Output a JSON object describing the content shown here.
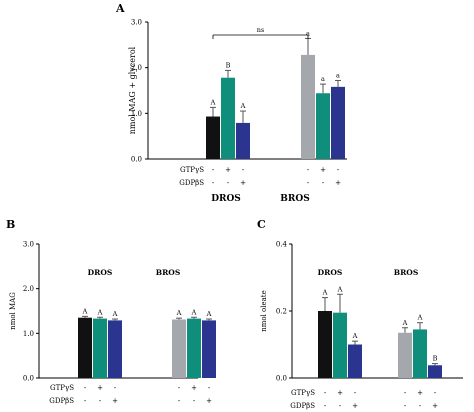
{
  "chart_data": [
    {
      "panel": "A",
      "type": "bar",
      "ylabel": "nmol MAG + glycerol",
      "ylim": [
        0,
        3.0
      ],
      "yticks": [
        "0.0",
        "1.0",
        "2.0",
        "3.0"
      ],
      "groups": [
        "DROS",
        "BROS"
      ],
      "treatments": {
        "GTPgS": [
          "-",
          "+",
          "-"
        ],
        "GDPbS": [
          "-",
          "-",
          "+"
        ]
      },
      "treatment_labels": [
        "GTPγS",
        "GDPβS"
      ],
      "series": [
        {
          "values": [
            0.93,
            1.78,
            0.79
          ],
          "errors": [
            0.2,
            0.16,
            0.26
          ],
          "letters": [
            "A",
            "B",
            "A"
          ]
        },
        {
          "values": [
            2.28,
            1.44,
            1.58
          ],
          "errors": [
            0.36,
            0.2,
            0.14
          ],
          "letters": [
            "a",
            "a",
            "a"
          ]
        }
      ],
      "colors": [
        "#111111",
        "#0f8e7c",
        "#2b3590",
        "#a4a8ad",
        "#0f8e7c",
        "#2b3590"
      ],
      "annotation": "ns"
    },
    {
      "panel": "B",
      "type": "bar",
      "ylabel": "nmol MAG",
      "ylim": [
        0,
        3.0
      ],
      "yticks": [
        "0.0",
        "1.0",
        "2.0",
        "3.0"
      ],
      "groups": [
        "DROS",
        "BROS"
      ],
      "treatments": {
        "GTPgS": [
          "-",
          "+",
          "-"
        ],
        "GDPbS": [
          "-",
          "-",
          "+"
        ]
      },
      "treatment_labels": [
        "GTPγS",
        "GDPβS"
      ],
      "series": [
        {
          "values": [
            1.35,
            1.33,
            1.29
          ],
          "errors": [
            0.03,
            0.03,
            0.03
          ],
          "letters": [
            "A",
            "A",
            "A"
          ]
        },
        {
          "values": [
            1.31,
            1.33,
            1.29
          ],
          "errors": [
            0.03,
            0.03,
            0.03
          ],
          "letters": [
            "A",
            "A",
            "A"
          ]
        }
      ],
      "colors": [
        "#111111",
        "#0f8e7c",
        "#2b3590",
        "#a4a8ad",
        "#0f8e7c",
        "#2b3590"
      ]
    },
    {
      "panel": "C",
      "type": "bar",
      "ylabel": "nmol oleate",
      "ylim": [
        0,
        0.4
      ],
      "yticks": [
        "0.0",
        "0.2",
        "0.4"
      ],
      "groups": [
        "DROS",
        "BROS"
      ],
      "treatments": {
        "GTPgS": [
          "-",
          "+",
          "-"
        ],
        "GDPbS": [
          "-",
          "-",
          "+"
        ]
      },
      "treatment_labels": [
        "GTPγS",
        "GDPβS"
      ],
      "series": [
        {
          "values": [
            0.2,
            0.195,
            0.1
          ],
          "errors": [
            0.04,
            0.055,
            0.01
          ],
          "letters": [
            "A",
            "A",
            "A"
          ]
        },
        {
          "values": [
            0.135,
            0.145,
            0.038
          ],
          "errors": [
            0.015,
            0.02,
            0.005
          ],
          "letters": [
            "A",
            "A",
            "B"
          ]
        }
      ],
      "colors": [
        "#111111",
        "#0f8e7c",
        "#2b3590",
        "#a4a8ad",
        "#0f8e7c",
        "#2b3590"
      ]
    }
  ]
}
